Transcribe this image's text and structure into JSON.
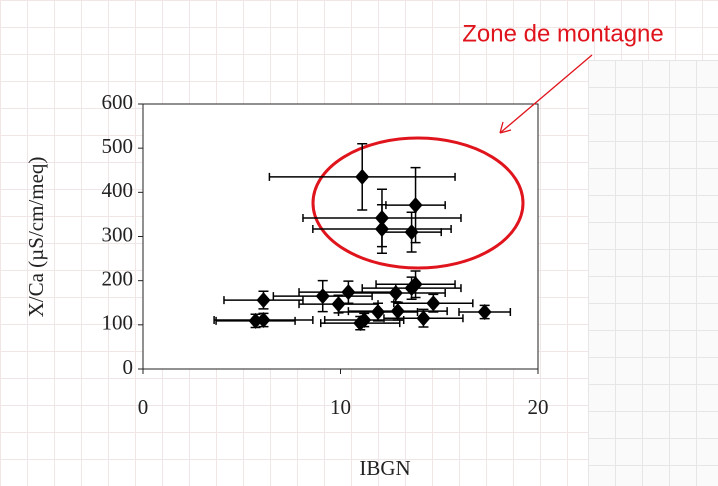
{
  "chart_data": {
    "type": "scatter",
    "annotation": "Zone de montagne",
    "x_label": "IBGN",
    "y_label": "X/Ca (µS/cm/meq)",
    "color": "#000000",
    "x": [
      11.1,
      12.1,
      12.1,
      13.8,
      13.6,
      6.1,
      5.7,
      6.1,
      9.1,
      9.9,
      10.4,
      11.0,
      11.2,
      11.9,
      12.8,
      12.9,
      13.6,
      13.8,
      14.2,
      14.7,
      17.3
    ],
    "y": [
      435,
      342,
      317,
      371,
      310,
      156,
      109,
      111,
      165,
      147,
      174,
      104,
      111,
      129,
      172,
      131,
      183,
      192,
      115,
      149,
      129
    ],
    "xerr": [
      4.7,
      4.0,
      3.5,
      1.5,
      1.5,
      2.0,
      2.0,
      2.5,
      2.5,
      2.0,
      2.5,
      2.0,
      2.0,
      2.0,
      2.5,
      2.5,
      2.5,
      2.0,
      2.0,
      2.0,
      1.3
    ],
    "yerr": [
      75,
      65,
      55,
      85,
      45,
      20,
      15,
      15,
      35,
      20,
      25,
      15,
      15,
      20,
      20,
      20,
      25,
      30,
      20,
      20,
      15
    ],
    "xlim": [
      0,
      20
    ],
    "xticks": [
      0,
      10,
      20
    ],
    "ylim": [
      0,
      600
    ],
    "yticks": [
      0,
      100,
      200,
      300,
      400,
      500,
      600
    ]
  }
}
